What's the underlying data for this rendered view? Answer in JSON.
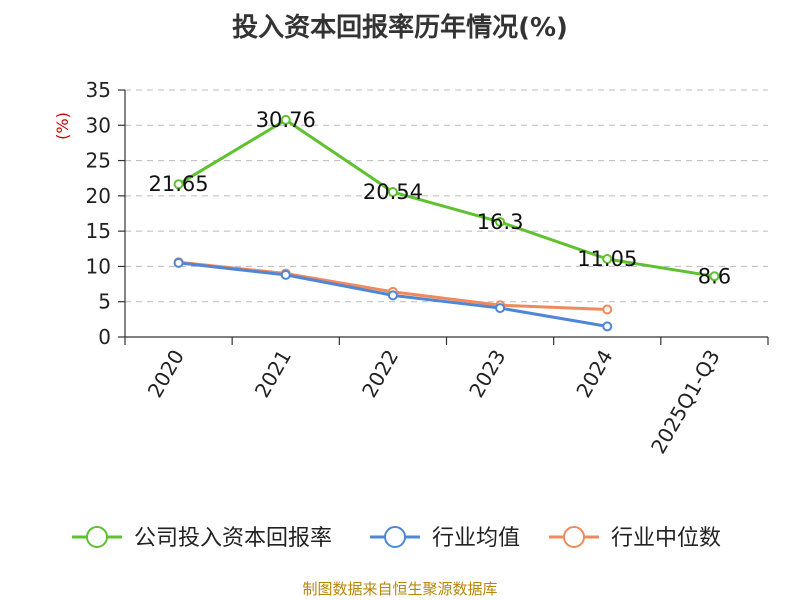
{
  "chart_data": {
    "type": "line",
    "title": "投入资本回报率历年情况(%)",
    "ylabel": "(%)",
    "categories": [
      "2020",
      "2021",
      "2022",
      "2023",
      "2024",
      "2025Q1-Q3"
    ],
    "ylim": [
      0,
      35
    ],
    "yticks": [
      0,
      5,
      10,
      15,
      20,
      25,
      30,
      35
    ],
    "grid": true,
    "legend_position": "bottom",
    "series": [
      {
        "name": "公司投入资本回报率",
        "color": "#5ec12f",
        "values": [
          21.65,
          30.76,
          20.54,
          16.3,
          11.05,
          8.6
        ],
        "labels": [
          "21.65",
          "30.76",
          "20.54",
          "16.3",
          "11.05",
          "8.6"
        ]
      },
      {
        "name": "行业均值",
        "color": "#4f86d8",
        "values": [
          10.5,
          8.8,
          5.9,
          4.1,
          1.5,
          null
        ]
      },
      {
        "name": "行业中位数",
        "color": "#f08a5d",
        "values": [
          10.6,
          9.0,
          6.4,
          4.5,
          3.9,
          null
        ]
      }
    ]
  },
  "footer": {
    "source": "制图数据来自恒生聚源数据库"
  }
}
